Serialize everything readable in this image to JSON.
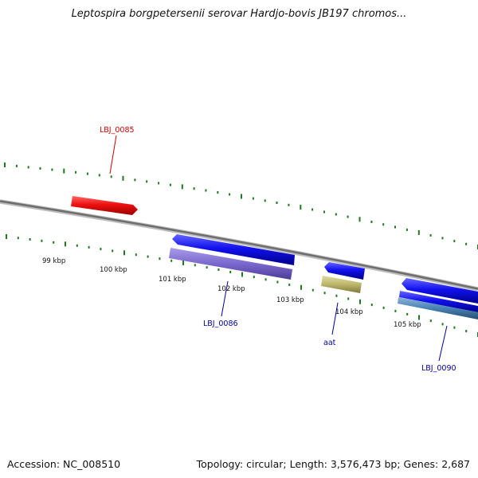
{
  "title": "Leptospira borgpetersenii serovar Hardjo-bovis JB197 chromos...",
  "footer": {
    "accession": "Accession: NC_008510",
    "summary": "Topology: circular; Length: 3,576,473 bp; Genes: 2,687"
  },
  "colors": {
    "backbone": "#7a7a7a",
    "ticks": "#1f7a1f",
    "gene_red": "#ee1111",
    "gene_blue": "#1111ee",
    "gene_purple": "#7b68cf",
    "gene_khaki": "#bdb76b",
    "gene_steel": "#4682b4",
    "label_red": "#cc0000",
    "label_blue": "#000099"
  },
  "kbp_labels": [
    "99 kbp",
    "100 kbp",
    "101 kbp",
    "102 kbp",
    "103 kbp",
    "104 kbp",
    "105 kbp"
  ],
  "genes": [
    {
      "label": "LBJ_0085",
      "color": "red"
    },
    {
      "label": "LBJ_0086",
      "color": "blue"
    },
    {
      "label": "aat",
      "color": "blue"
    },
    {
      "label": "LBJ_0090",
      "color": "blue"
    }
  ]
}
